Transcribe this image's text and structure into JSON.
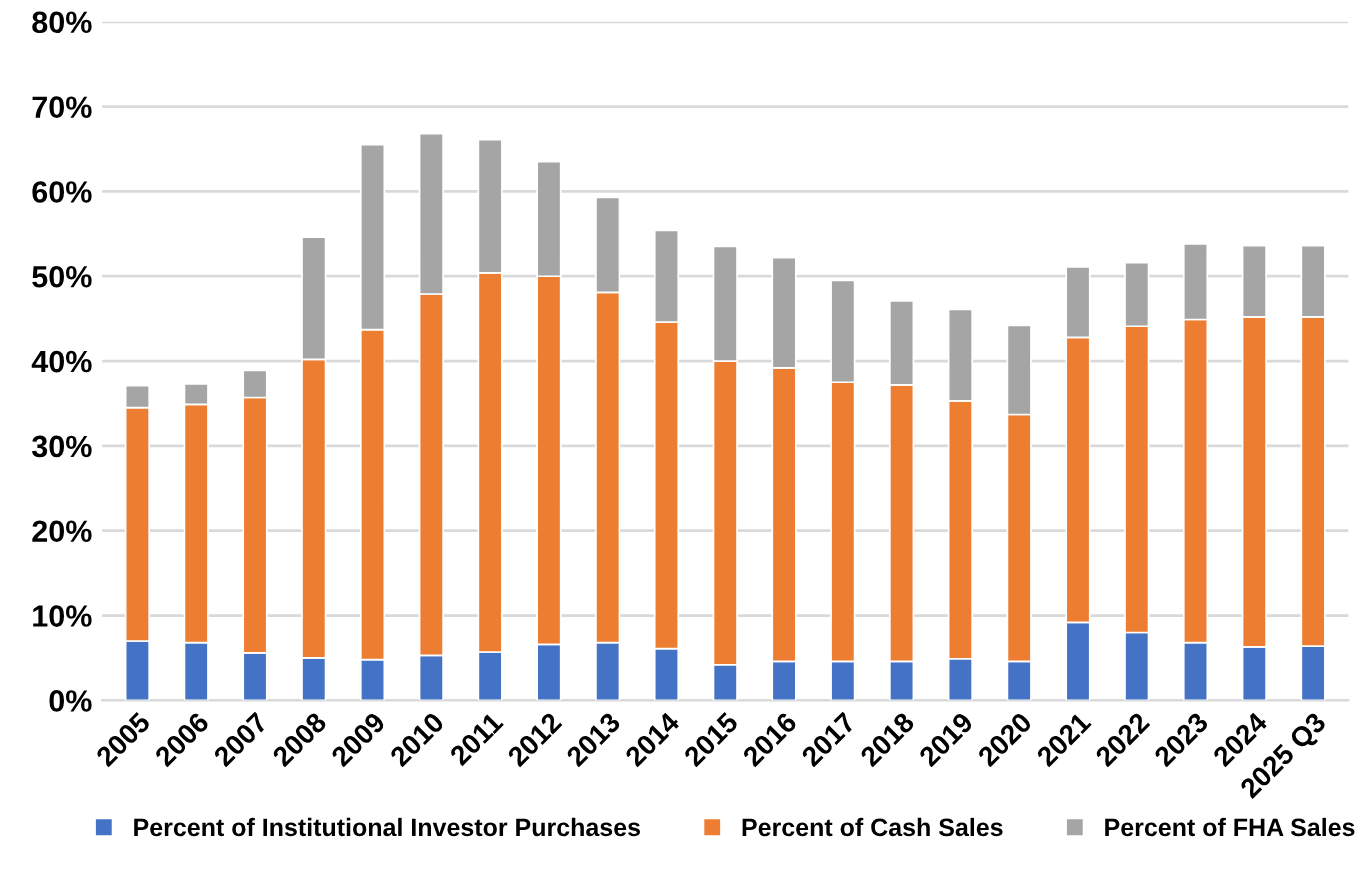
{
  "chart_data": {
    "type": "bar",
    "stacked": true,
    "categories": [
      "2005",
      "2006",
      "2007",
      "2008",
      "2009",
      "2010",
      "2011",
      "2012",
      "2013",
      "2014",
      "2015",
      "2016",
      "2017",
      "2018",
      "2019",
      "2020",
      "2021",
      "2022",
      "2023",
      "2024",
      "2025 Q3"
    ],
    "series": [
      {
        "name": "Percent of Institutional Investor Purchases",
        "color": "#4472c4",
        "values": [
          7.0,
          6.8,
          5.6,
          5.0,
          4.8,
          5.3,
          5.7,
          6.6,
          6.8,
          6.1,
          4.2,
          4.6,
          4.6,
          4.6,
          4.9,
          4.6,
          9.2,
          8.0,
          6.8,
          6.3,
          6.4
        ]
      },
      {
        "name": "Percent of Cash Sales",
        "color": "#ed7d31",
        "values": [
          27.5,
          28.1,
          30.1,
          35.2,
          38.9,
          42.6,
          44.7,
          43.4,
          41.3,
          38.5,
          35.8,
          34.6,
          32.9,
          32.6,
          30.4,
          29.1,
          33.6,
          36.1,
          38.1,
          38.9,
          38.8
        ]
      },
      {
        "name": "Percent of FHA Sales",
        "color": "#a5a5a5",
        "values": [
          2.6,
          2.4,
          3.2,
          14.4,
          21.8,
          18.9,
          15.7,
          13.5,
          11.2,
          10.8,
          13.5,
          13.0,
          12.0,
          9.9,
          10.8,
          10.5,
          8.3,
          7.5,
          8.9,
          8.4,
          8.4
        ]
      }
    ],
    "ylim": [
      0,
      80
    ],
    "yticks": [
      {
        "value": 0,
        "label": "0%"
      },
      {
        "value": 10,
        "label": "10%"
      },
      {
        "value": 20,
        "label": "20%"
      },
      {
        "value": 30,
        "label": "30%"
      },
      {
        "value": 40,
        "label": "40%"
      },
      {
        "value": 50,
        "label": "50%"
      },
      {
        "value": 60,
        "label": "60%"
      },
      {
        "value": 70,
        "label": "70%"
      },
      {
        "value": 80,
        "label": "80%"
      }
    ],
    "grid": "y",
    "legend": "bottom"
  }
}
